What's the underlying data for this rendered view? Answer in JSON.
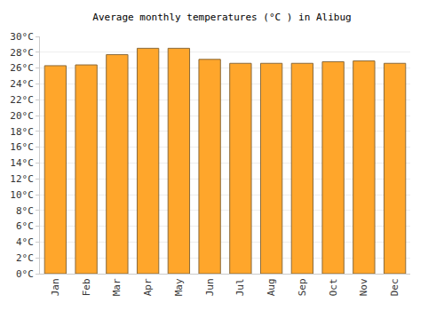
{
  "chart_data": {
    "type": "bar",
    "title": "Average monthly temperatures (°C ) in Alibug",
    "categories": [
      "Jan",
      "Feb",
      "Mar",
      "Apr",
      "May",
      "Jun",
      "Jul",
      "Aug",
      "Sep",
      "Oct",
      "Nov",
      "Dec"
    ],
    "values": [
      26.3,
      26.4,
      27.7,
      28.5,
      28.5,
      27.1,
      26.6,
      26.6,
      26.6,
      26.8,
      26.9,
      26.6
    ],
    "color": "#ffa62b",
    "ylim": [
      0,
      30
    ],
    "yticks": [
      {
        "value": 0,
        "label": "0°C"
      },
      {
        "value": 2,
        "label": "2°C"
      },
      {
        "value": 4,
        "label": "4°C"
      },
      {
        "value": 6,
        "label": "6°C"
      },
      {
        "value": 8,
        "label": "8°C"
      },
      {
        "value": 10,
        "label": "10°C"
      },
      {
        "value": 12,
        "label": "12°C"
      },
      {
        "value": 14,
        "label": "14°C"
      },
      {
        "value": 16,
        "label": "16°C"
      },
      {
        "value": 18,
        "label": "18°C"
      },
      {
        "value": 20,
        "label": "20°C"
      },
      {
        "value": 22,
        "label": "22°C"
      },
      {
        "value": 24,
        "label": "24°C"
      },
      {
        "value": 26,
        "label": "26°C"
      },
      {
        "value": 28,
        "label": "28°C"
      },
      {
        "value": 30,
        "label": "30°C"
      }
    ],
    "grid": true
  }
}
